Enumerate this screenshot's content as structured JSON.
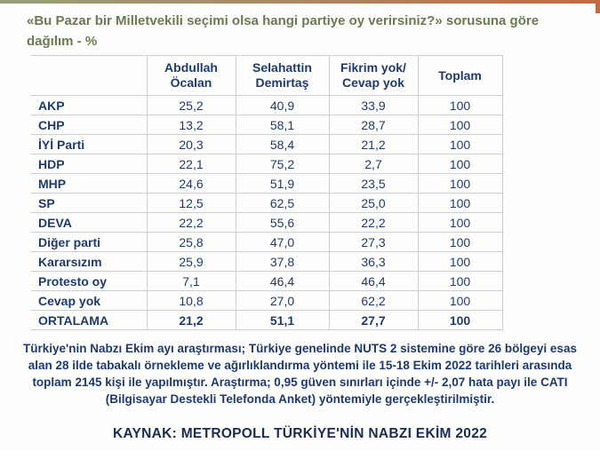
{
  "title": "«Bu Pazar bir Milletvekili seçimi olsa hangi partiye oy verirsiniz?» sorusuna göre dağılım -  %",
  "colors": {
    "title_green": "#6b7a52",
    "text_navy": "#1e3a6e",
    "accent_green": "#95a078",
    "accent_orange": "#c26a40",
    "table_border": "#cbd0d6"
  },
  "chart_data": {
    "type": "table",
    "title": "«Bu Pazar bir Milletvekili seçimi olsa hangi partiye oy verirsiniz?» sorusuna göre dağılım - %",
    "unit": "%",
    "columns": [
      "Abdullah Öcalan",
      "Selahattin Demirtaş",
      "Fikrim yok/ Cevap yok",
      "Toplam"
    ],
    "rows": [
      {
        "label": "AKP",
        "values": [
          "25,2",
          "40,9",
          "33,9",
          "100"
        ]
      },
      {
        "label": "CHP",
        "values": [
          "13,2",
          "58,1",
          "28,7",
          "100"
        ]
      },
      {
        "label": "İYİ Parti",
        "values": [
          "20,3",
          "58,4",
          "21,2",
          "100"
        ]
      },
      {
        "label": "HDP",
        "values": [
          "22,1",
          "75,2",
          "2,7",
          "100"
        ]
      },
      {
        "label": "MHP",
        "values": [
          "24,6",
          "51,9",
          "23,5",
          "100"
        ]
      },
      {
        "label": "SP",
        "values": [
          "12,5",
          "62,5",
          "25,0",
          "100"
        ]
      },
      {
        "label": "DEVA",
        "values": [
          "22,2",
          "55,6",
          "22,2",
          "100"
        ]
      },
      {
        "label": "Diğer parti",
        "values": [
          "25,8",
          "47,0",
          "27,3",
          "100"
        ]
      },
      {
        "label": "Kararsızım",
        "values": [
          "25,9",
          "37,8",
          "36,3",
          "100"
        ]
      },
      {
        "label": "Protesto oy",
        "values": [
          "7,1",
          "46,4",
          "46,4",
          "100"
        ]
      },
      {
        "label": "Cevap yok",
        "values": [
          "10,8",
          "27,0",
          "62,2",
          "100"
        ]
      },
      {
        "label": "ORTALAMA",
        "values": [
          "21,2",
          "51,1",
          "27,7",
          "100"
        ],
        "emphasis": true
      }
    ]
  },
  "footnote": "Türkiye'nin Nabzı Ekim ayı araştırması; Türkiye genelinde NUTS 2 sistemine göre 26 bölgeyi esas alan 28 ilde tabakalı örnekleme ve ağırlıklandırma yöntemi ile 15-18 Ekim 2022 tarihleri arasında toplam 2145 kişi ile yapılmıştır. Araştırma; 0,95 güven sınırları içinde +/- 2,07 hata payı ile CATI (Bilgisayar Destekli Telefonda Anket) yöntemiyle gerçekleştirilmiştir.",
  "source": "KAYNAK: METROPOLL TÜRKİYE'NİN NABZI EKİM 2022"
}
